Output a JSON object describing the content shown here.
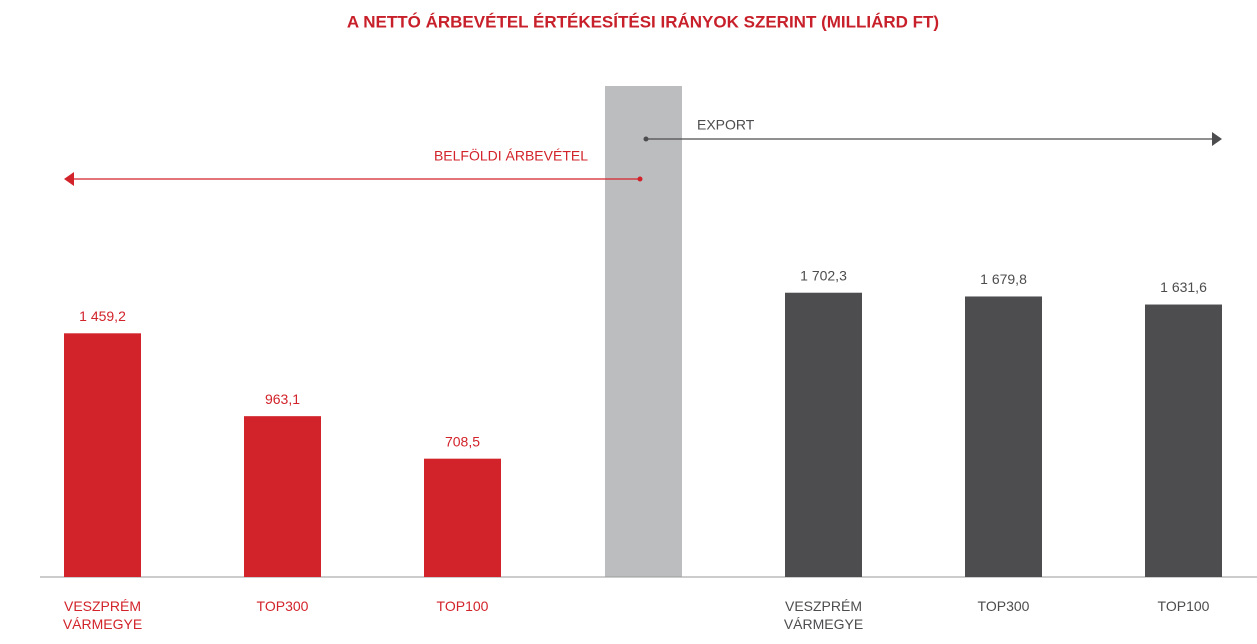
{
  "chart_data": {
    "type": "bar",
    "title": "A NETTÓ ÁRBEVÉTEL ÉRTÉKESÍTÉSI IRÁNYOK SZERINT (MILLIÁRD FT)",
    "categories": [
      "VESZPRÉM VÁRMEGYE",
      "TOP300",
      "TOP100"
    ],
    "series": [
      {
        "name": "BELFÖLDI ÁRBEVÉTEL",
        "color": "#d2232a",
        "values": [
          1459.2,
          963.1,
          708.5
        ],
        "value_labels": [
          "1 459,2",
          "963,1",
          "708,5"
        ]
      },
      {
        "name": "EXPORT",
        "color": "#4d4d4f",
        "values": [
          1702.3,
          1679.8,
          1631.6
        ],
        "value_labels": [
          "1 702,3",
          "1 679,8",
          "1 631,6"
        ]
      }
    ]
  }
}
